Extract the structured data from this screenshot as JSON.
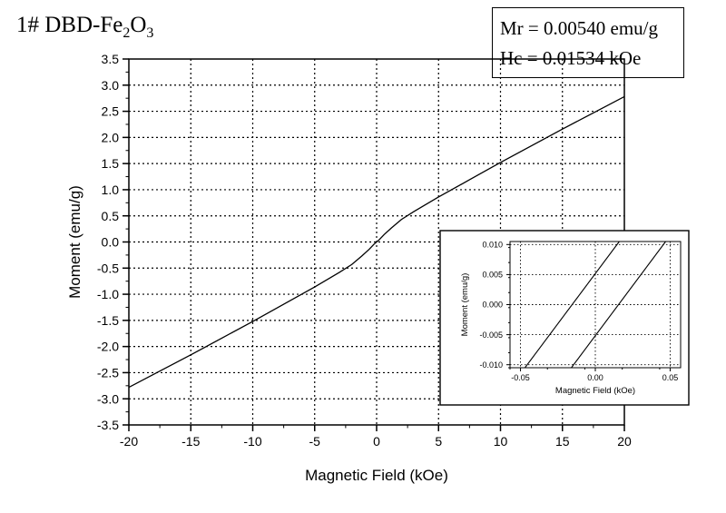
{
  "figure": {
    "title_main": "1# DBD-Fe",
    "title_sub1": "2",
    "title_mid": "O",
    "title_sub2": "3",
    "mr_text": "Mr = 0.00540 emu/g",
    "hc_text": "Hc = 0.01534 kOe"
  },
  "chart_data": [
    {
      "type": "line",
      "title": "",
      "xlabel": "Magnetic Field (kOe)",
      "ylabel": "Moment (emu/g)",
      "xlim": [
        -20,
        20
      ],
      "ylim": [
        -3.5,
        3.5
      ],
      "xticks": [
        -20,
        -15,
        -10,
        -5,
        0,
        5,
        10,
        15,
        20
      ],
      "xtick_labels": [
        "-20",
        "-15",
        "-10",
        "-5",
        "0",
        "5",
        "10",
        "15",
        "20"
      ],
      "yticks": [
        -3.5,
        -3.0,
        -2.5,
        -2.0,
        -1.5,
        -1.0,
        -0.5,
        0.0,
        0.5,
        1.0,
        1.5,
        2.0,
        2.5,
        3.0,
        3.5
      ],
      "ytick_labels": [
        "-3.5",
        "-3.0",
        "-2.5",
        "-2.0",
        "-1.5",
        "-1.0",
        "-0.5",
        "0.0",
        "0.5",
        "1.0",
        "1.5",
        "2.0",
        "2.5",
        "3.0",
        "3.5"
      ],
      "grid": true,
      "series": [
        {
          "color": "#000000",
          "x": [
            -20,
            -17.5,
            -15,
            -12.5,
            -10,
            -7.5,
            -5,
            -3,
            -2,
            -1.2,
            -0.6,
            -0.2,
            0,
            0.2,
            0.6,
            1.2,
            2,
            3,
            5,
            7.5,
            10,
            12.5,
            15,
            17.5,
            20
          ],
          "y": [
            -2.78,
            -2.47,
            -2.16,
            -1.84,
            -1.52,
            -1.19,
            -0.86,
            -0.58,
            -0.43,
            -0.27,
            -0.14,
            -0.04,
            0.0,
            0.04,
            0.14,
            0.27,
            0.43,
            0.58,
            0.86,
            1.19,
            1.52,
            1.84,
            2.16,
            2.47,
            2.78
          ]
        }
      ]
    },
    {
      "type": "line",
      "title": "",
      "xlabel": "Magnetic Field (kOe)",
      "ylabel": "Moment (emu/g)",
      "xlim": [
        -0.057,
        0.057
      ],
      "ylim": [
        -0.0105,
        0.0105
      ],
      "xticks": [
        -0.05,
        0.0,
        0.05
      ],
      "xtick_labels": [
        "-0.05",
        "0.00",
        "0.05"
      ],
      "yticks": [
        -0.01,
        -0.005,
        0.0,
        0.005,
        0.01
      ],
      "ytick_labels": [
        "-0.010",
        "-0.005",
        "0.000",
        "0.005",
        "0.010"
      ],
      "grid": true,
      "series": [
        {
          "color": "#000000",
          "x": [
            -0.047,
            0.016
          ],
          "y": [
            -0.0105,
            0.0105
          ]
        },
        {
          "color": "#000000",
          "x": [
            -0.016,
            0.047
          ],
          "y": [
            -0.0105,
            0.0105
          ]
        }
      ]
    }
  ]
}
